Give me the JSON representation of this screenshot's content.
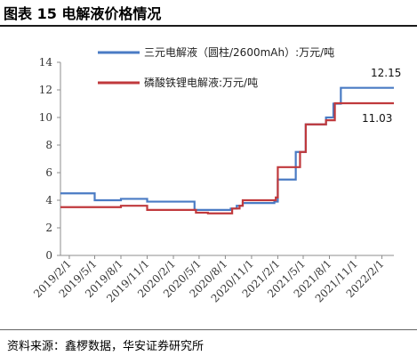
{
  "header": {
    "title": "图表 15 电解液价格情况"
  },
  "footer": {
    "source": "资料来源：鑫椤数据，华安证券研究所"
  },
  "colors": {
    "series1": "#4a7bc4",
    "series2": "#c0393c",
    "axis": "#8c8c8c"
  },
  "chart_data": {
    "type": "line",
    "title": "",
    "xlabel": "",
    "ylabel": "",
    "ylim": [
      0,
      14
    ],
    "yticks": [
      0,
      2,
      4,
      6,
      8,
      10,
      12,
      14
    ],
    "xtick_labels": [
      "2019/2/1",
      "2019/5/1",
      "2019/8/1",
      "2019/11/1",
      "2020/2/1",
      "2020/5/1",
      "2020/8/1",
      "2020/11/1",
      "2021/2/1",
      "2021/5/1",
      "2021/8/1",
      "2021/11/1",
      "2022/2/1"
    ],
    "xrange": [
      "2019/1/1",
      "2022/3/15"
    ],
    "grid": false,
    "legend_position": "top",
    "series": [
      {
        "name": "三元电解液（圆柱/2600mAh）:万元/吨",
        "color": "#4a7bc4",
        "step": true,
        "points": [
          [
            "2019/1/1",
            4.5
          ],
          [
            "2019/5/1",
            4.0
          ],
          [
            "2019/8/1",
            4.1
          ],
          [
            "2019/11/1",
            3.9
          ],
          [
            "2020/4/15",
            3.3
          ],
          [
            "2020/8/20",
            3.4
          ],
          [
            "2020/9/10",
            3.6
          ],
          [
            "2020/10/1",
            3.8
          ],
          [
            "2021/1/20",
            3.9
          ],
          [
            "2021/2/1",
            5.5
          ],
          [
            "2021/4/5",
            7.5
          ],
          [
            "2021/5/10",
            9.5
          ],
          [
            "2021/7/20",
            10.0
          ],
          [
            "2021/8/15",
            11.0
          ],
          [
            "2021/9/10",
            12.15
          ],
          [
            "2022/3/15",
            12.15
          ]
        ]
      },
      {
        "name": "磷酸铁锂电解液:万元/吨",
        "color": "#c0393c",
        "step": true,
        "points": [
          [
            "2019/1/1",
            3.5
          ],
          [
            "2019/8/1",
            3.6
          ],
          [
            "2019/11/1",
            3.3
          ],
          [
            "2020/4/20",
            3.1
          ],
          [
            "2020/6/1",
            3.05
          ],
          [
            "2020/8/25",
            3.4
          ],
          [
            "2020/9/20",
            3.6
          ],
          [
            "2020/10/1",
            4.0
          ],
          [
            "2021/1/25",
            4.2
          ],
          [
            "2021/2/1",
            6.4
          ],
          [
            "2021/4/20",
            7.5
          ],
          [
            "2021/5/10",
            9.5
          ],
          [
            "2021/7/20",
            9.8
          ],
          [
            "2021/8/20",
            11.03
          ],
          [
            "2022/3/15",
            11.03
          ]
        ]
      }
    ],
    "annotations": [
      {
        "text": "12.15",
        "series": 0
      },
      {
        "text": "11.03",
        "series": 1
      }
    ]
  }
}
